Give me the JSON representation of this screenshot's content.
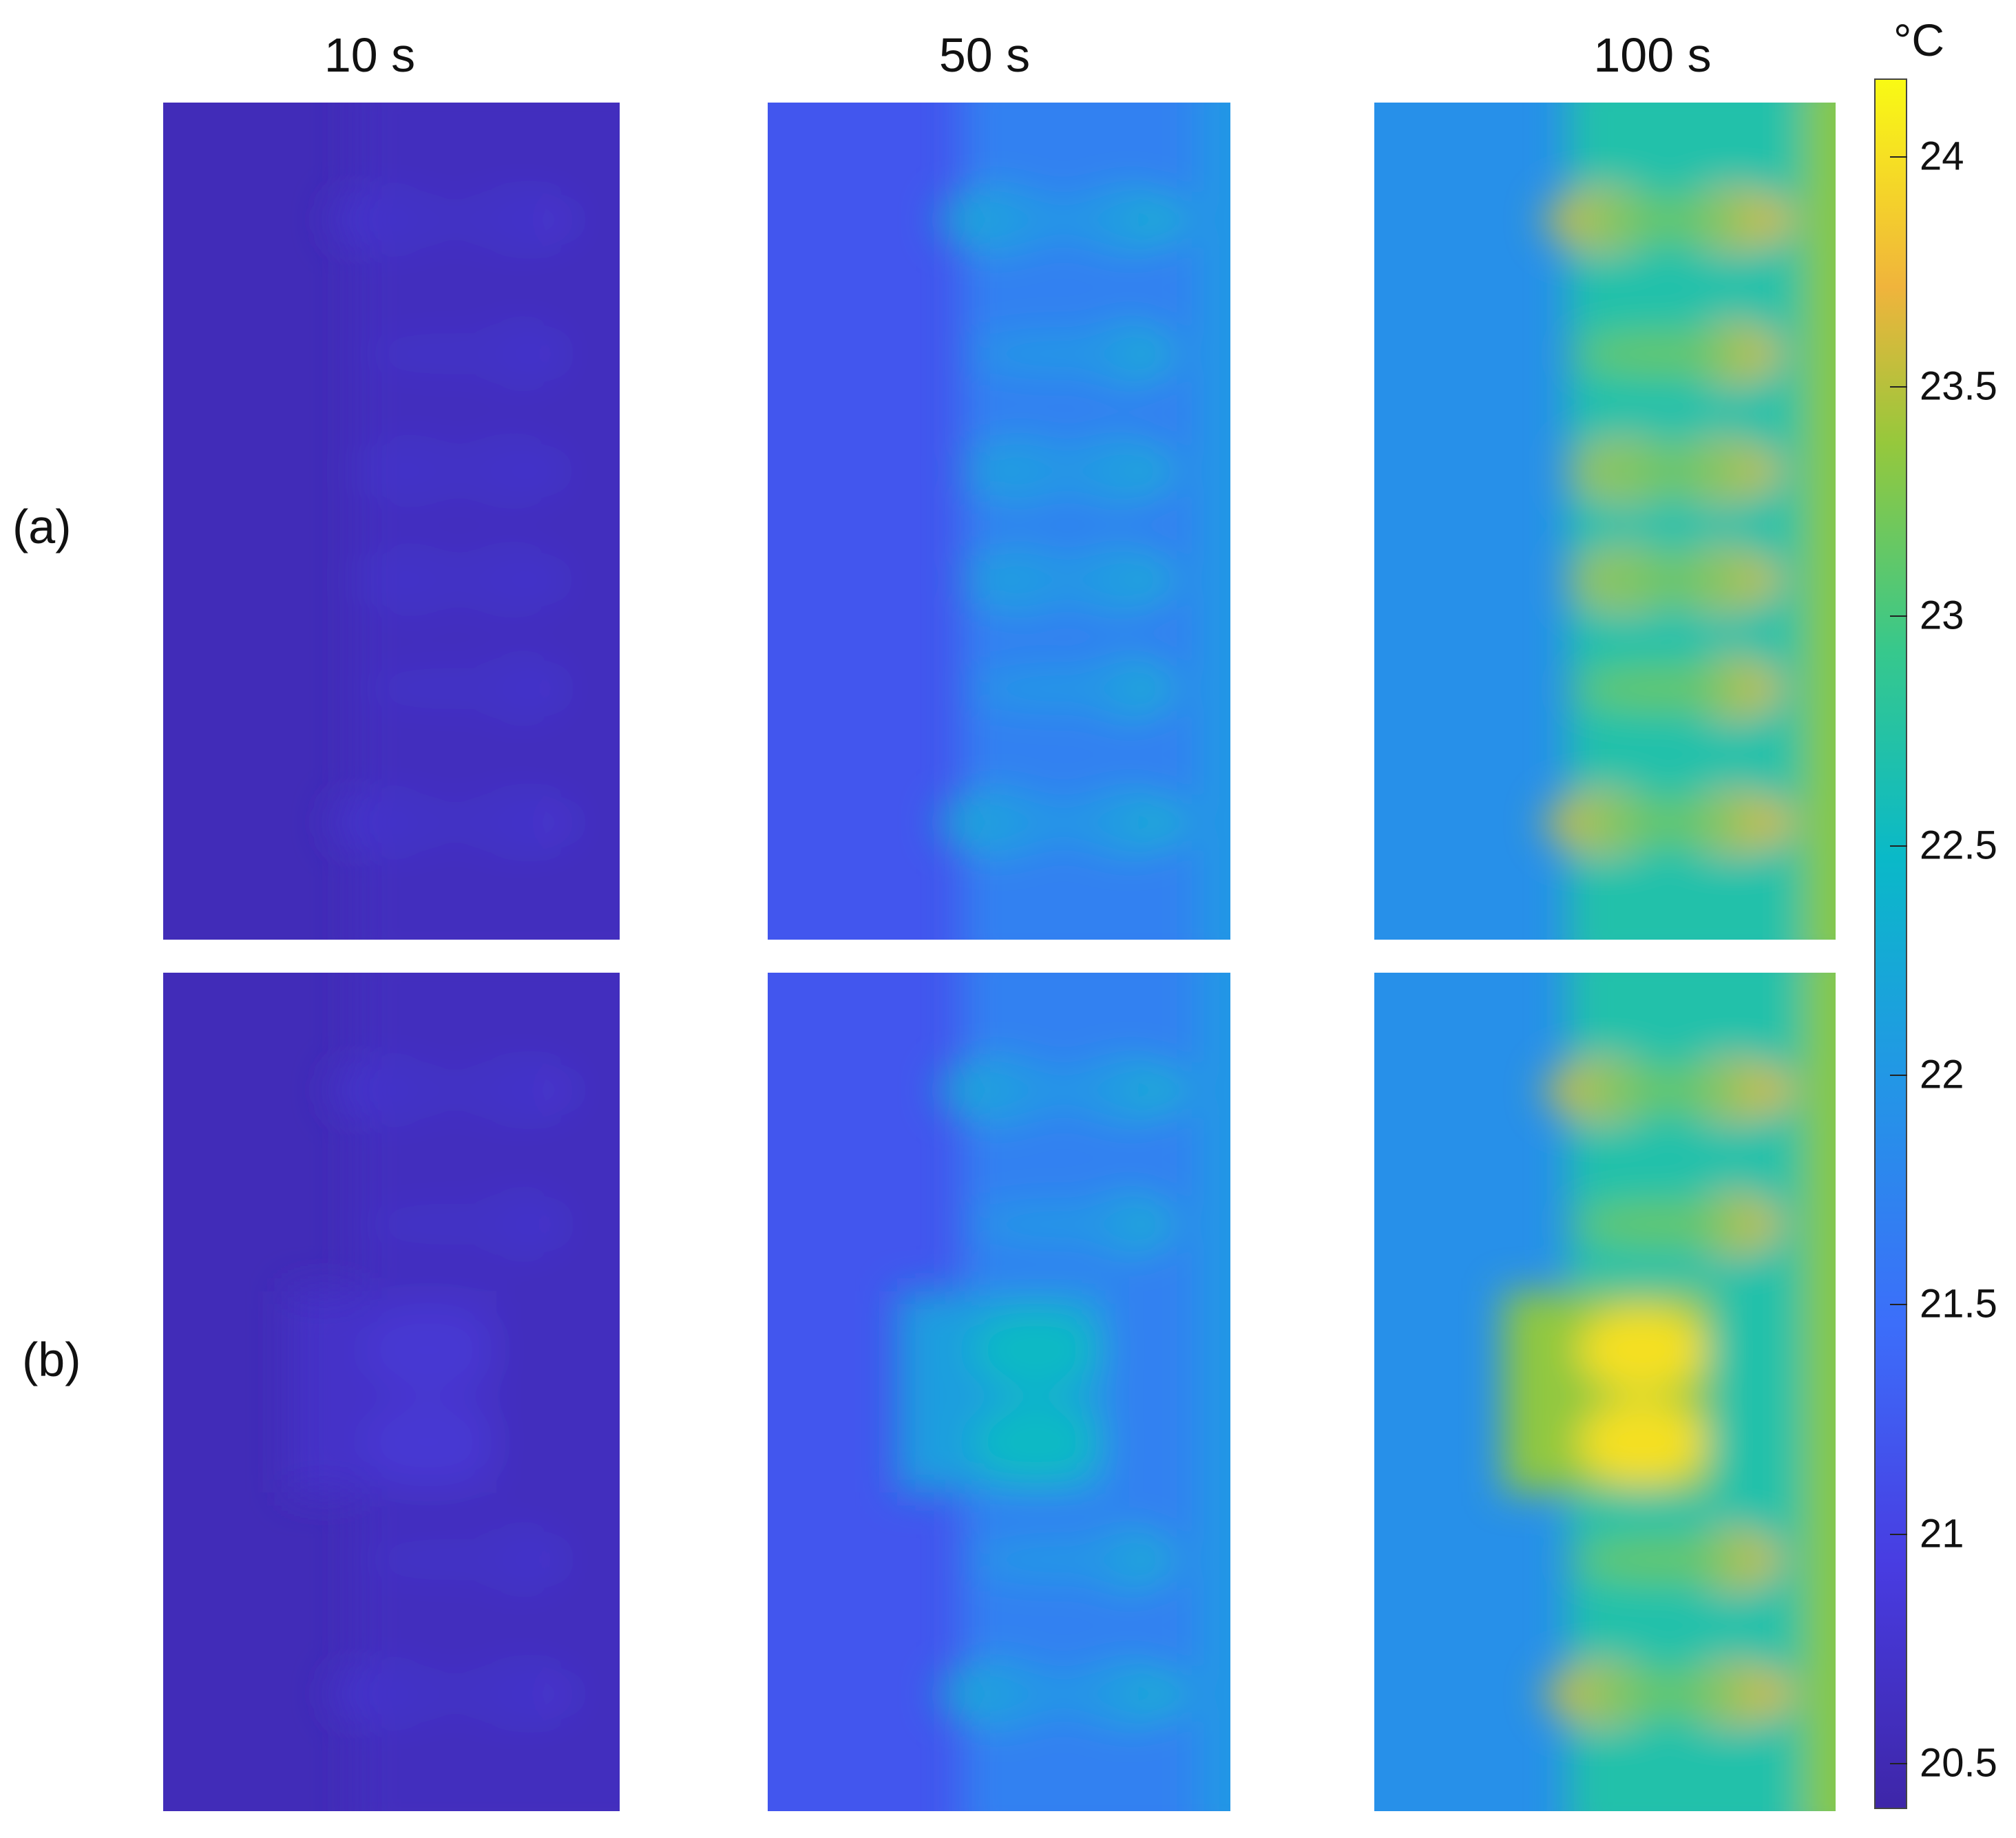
{
  "chart_data": {
    "type": "heatmap",
    "columns": [
      {
        "title": "10 s"
      },
      {
        "title": "50 s"
      },
      {
        "title": "100 s"
      }
    ],
    "rows": [
      {
        "label": "(a)"
      },
      {
        "label": "(b)"
      }
    ],
    "colorbar": {
      "unit": "°C",
      "ticks": [
        20.5,
        21,
        21.5,
        22,
        22.5,
        23,
        23.5,
        24
      ],
      "tick_labels": [
        "20.5",
        "21",
        "21.5",
        "22",
        "22.5",
        "23",
        "23.5",
        "24"
      ],
      "range": [
        20.4,
        24.17
      ],
      "colormap": "parula"
    },
    "panels": [
      [
        {
          "left": 20.55,
          "right": 20.6,
          "spot": 20.75,
          "edge": 20.6
        },
        {
          "left": 21.2,
          "right": 21.7,
          "spot": 22.3,
          "edge": 22.0
        },
        {
          "left": 21.9,
          "right": 22.7,
          "spot": 23.6,
          "edge": 23.3
        }
      ],
      [
        {
          "left": 20.55,
          "right": 20.6,
          "spot": 20.75,
          "edge": 20.6,
          "square": 20.8
        },
        {
          "left": 21.2,
          "right": 21.7,
          "spot": 22.3,
          "edge": 22.0,
          "square": 22.5
        },
        {
          "left": 21.9,
          "right": 22.7,
          "spot": 23.6,
          "edge": 23.3,
          "square": 24.0
        }
      ]
    ]
  }
}
